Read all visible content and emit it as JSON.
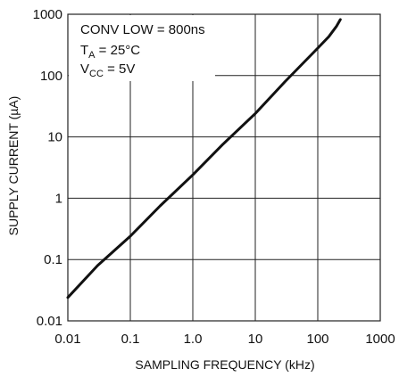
{
  "chart_data": {
    "type": "line",
    "xlabel": "SAMPLING FREQUENCY (kHz)",
    "ylabel": "SUPPLY CURRENT (µA)",
    "x_scale": "log",
    "y_scale": "log",
    "xlim": [
      0.01,
      1000
    ],
    "ylim": [
      0.01,
      1000
    ],
    "x_ticks": [
      "0.01",
      "0.1",
      "1.0",
      "10",
      "100",
      "1000"
    ],
    "y_ticks": [
      "0.01",
      "0.1",
      "1",
      "10",
      "100",
      "1000"
    ],
    "grid": true,
    "annotation": {
      "line1": "CONV LOW = 800ns",
      "line2_main": "T",
      "line2_sub": "A",
      "line2_rest": " = 25°C",
      "line3_main": "V",
      "line3_sub": "CC",
      "line3_rest": " = 5V"
    },
    "series": [
      {
        "x": [
          0.01,
          0.03,
          0.1,
          0.3,
          1,
          3,
          10,
          30,
          100,
          150,
          200,
          230
        ],
        "y": [
          0.024,
          0.08,
          0.24,
          0.75,
          2.4,
          7.5,
          24,
          80,
          280,
          430,
          640,
          820
        ]
      }
    ]
  }
}
